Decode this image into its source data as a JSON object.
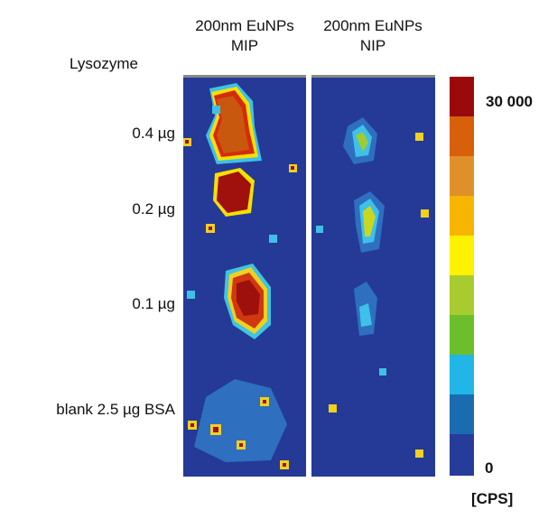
{
  "columns": [
    {
      "line1": "200nm EuNPs",
      "line2": "MIP"
    },
    {
      "line1": "200nm EuNPs",
      "line2": "NIP"
    }
  ],
  "row_header": "Lysozyme",
  "rows": [
    "0.4 µg",
    "0.2 µg",
    "0.1 µg",
    "blank 2.5 µg BSA"
  ],
  "colorbar": {
    "max_label": "30 000",
    "min_label": "0",
    "unit": "[CPS]"
  }
}
